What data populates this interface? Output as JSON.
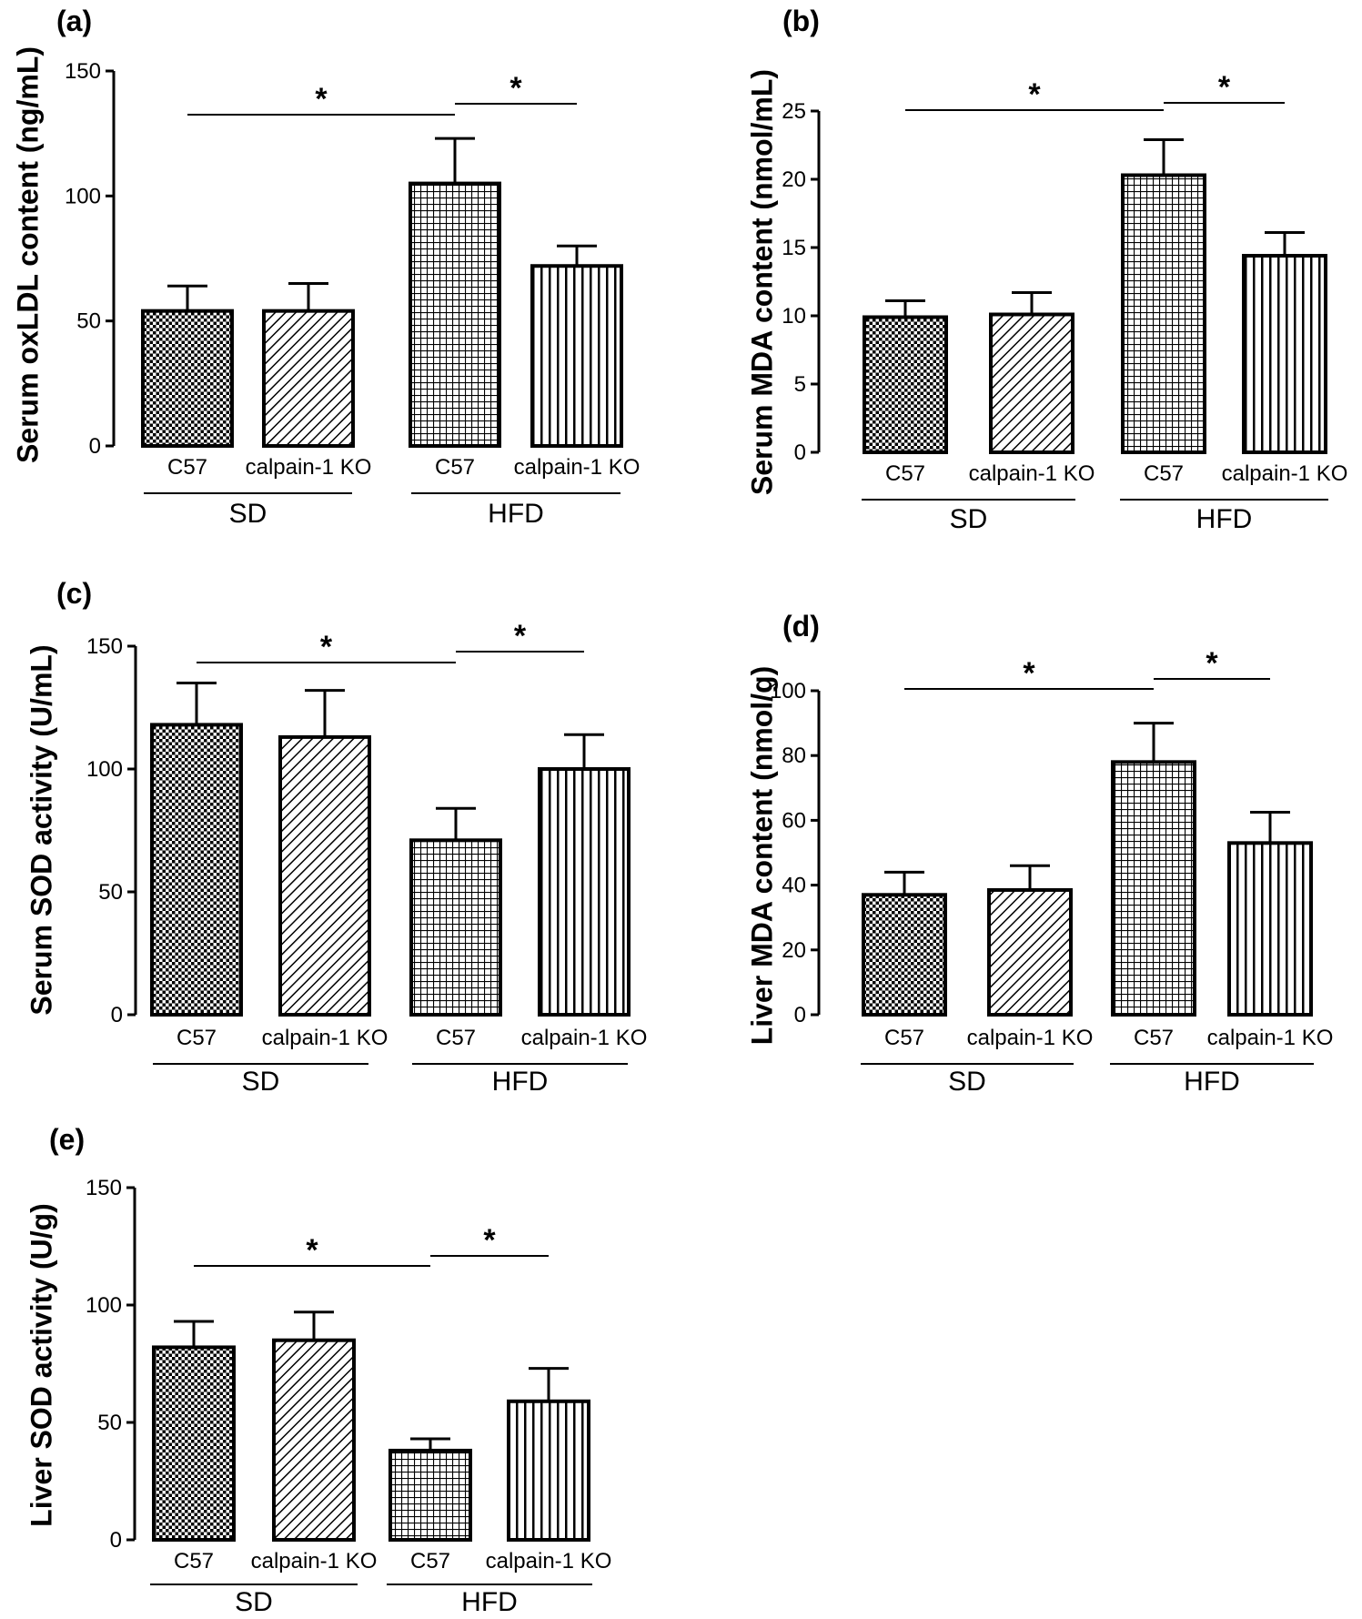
{
  "figure": {
    "group_labels": [
      "SD",
      "HFD"
    ],
    "categories": [
      "C57",
      "calpain-1 KO",
      "C57",
      "calpain-1 KO"
    ],
    "significance_mark": "*"
  },
  "chart_data": [
    {
      "panel": "(a)",
      "type": "bar",
      "ylabel": "Serum oxLDL content (ng/mL)",
      "categories": [
        "C57",
        "calpain-1 KO",
        "C57",
        "calpain-1 KO"
      ],
      "groups": [
        "SD",
        "HFD"
      ],
      "values": [
        54,
        54,
        105,
        72
      ],
      "errors": [
        10,
        11,
        18,
        8
      ],
      "ylim": [
        0,
        150
      ],
      "yticks": [
        0,
        50,
        100,
        150
      ],
      "significance": [
        {
          "from": 0,
          "to": 2,
          "label": "*"
        },
        {
          "from": 2,
          "to": 3,
          "label": "*"
        }
      ],
      "grid": false
    },
    {
      "panel": "(b)",
      "type": "bar",
      "ylabel": "Serum MDA content (nmol/mL)",
      "categories": [
        "C57",
        "calpain-1 KO",
        "C57",
        "calpain-1 KO"
      ],
      "groups": [
        "SD",
        "HFD"
      ],
      "values": [
        9.9,
        10.1,
        20.3,
        14.4
      ],
      "errors": [
        1.2,
        1.6,
        2.6,
        1.7
      ],
      "ylim": [
        0,
        25
      ],
      "yticks": [
        0,
        5,
        10,
        15,
        20,
        25
      ],
      "significance": [
        {
          "from": 0,
          "to": 2,
          "label": "*"
        },
        {
          "from": 2,
          "to": 3,
          "label": "*"
        }
      ],
      "grid": false
    },
    {
      "panel": "(c)",
      "type": "bar",
      "ylabel": "Serum SOD activity (U/mL)",
      "categories": [
        "C57",
        "calpain-1 KO",
        "C57",
        "calpain-1 KO"
      ],
      "groups": [
        "SD",
        "HFD"
      ],
      "values": [
        118,
        113,
        71,
        100
      ],
      "errors": [
        17,
        19,
        13,
        14
      ],
      "ylim": [
        0,
        150
      ],
      "yticks": [
        0,
        50,
        100,
        150
      ],
      "significance": [
        {
          "from": 0,
          "to": 2,
          "label": "*"
        },
        {
          "from": 2,
          "to": 3,
          "label": "*"
        }
      ],
      "grid": false
    },
    {
      "panel": "(d)",
      "type": "bar",
      "ylabel": "Liver MDA content (nmol/g)",
      "categories": [
        "C57",
        "calpain-1 KO",
        "C57",
        "calpain-1 KO"
      ],
      "groups": [
        "SD",
        "HFD"
      ],
      "values": [
        37,
        38.5,
        78,
        53
      ],
      "errors": [
        7,
        7.5,
        12,
        9.5
      ],
      "ylim": [
        0,
        100
      ],
      "yticks": [
        0,
        20,
        40,
        60,
        80,
        100
      ],
      "significance": [
        {
          "from": 0,
          "to": 2,
          "label": "*"
        },
        {
          "from": 2,
          "to": 3,
          "label": "*"
        }
      ],
      "grid": false
    },
    {
      "panel": "(e)",
      "type": "bar",
      "ylabel": "Liver SOD activity (U/g)",
      "categories": [
        "C57",
        "calpain-1 KO",
        "C57",
        "calpain-1 KO"
      ],
      "groups": [
        "SD",
        "HFD"
      ],
      "values": [
        82,
        85,
        38,
        59
      ],
      "errors": [
        11,
        12,
        5,
        14
      ],
      "ylim": [
        0,
        150
      ],
      "yticks": [
        0,
        50,
        100,
        150
      ],
      "significance": [
        {
          "from": 0,
          "to": 2,
          "label": "*"
        },
        {
          "from": 2,
          "to": 3,
          "label": "*"
        }
      ],
      "grid": false
    }
  ]
}
